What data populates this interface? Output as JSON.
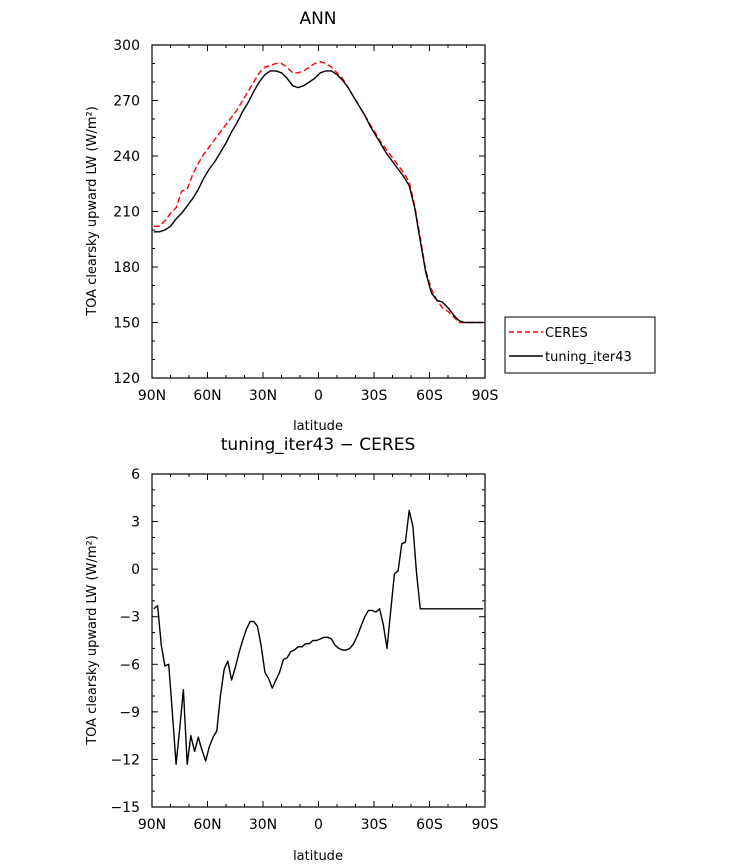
{
  "chart_data": [
    {
      "type": "line",
      "title": "ANN",
      "xlabel": "latitude",
      "ylabel": "TOA clearsky upward LW (W/m²)",
      "xlim": [
        90,
        -90
      ],
      "ylim": [
        120,
        300
      ],
      "xticks": [
        90,
        60,
        30,
        0,
        -30,
        -60,
        -90
      ],
      "xtick_labels": [
        "90N",
        "60N",
        "30N",
        "0",
        "30S",
        "60S",
        "90S"
      ],
      "yticks": [
        120,
        150,
        180,
        210,
        240,
        270,
        300
      ],
      "ytick_labels": [
        "120",
        "150",
        "180",
        "210",
        "240",
        "270",
        "300"
      ],
      "grid": false,
      "legend": "outside-right",
      "series": [
        {
          "name": "CERES",
          "color": "#ff0000",
          "style": "dashed",
          "x": [
            89,
            86,
            83,
            80,
            77,
            74,
            71,
            68,
            65,
            62,
            59,
            56,
            53,
            50,
            47,
            44,
            41,
            38,
            35,
            32,
            29,
            26,
            23,
            20,
            17,
            14,
            11,
            8,
            5,
            2,
            -1,
            -4,
            -7,
            -10,
            -13,
            -16,
            -19,
            -22,
            -25,
            -28,
            -31,
            -34,
            -37,
            -40,
            -43,
            -46,
            -49,
            -52,
            -55,
            -58,
            -61,
            -64,
            -67,
            -70,
            -73,
            -76,
            -79,
            -82,
            -85,
            -88,
            -89
          ],
          "y": [
            202,
            202,
            205,
            209,
            212,
            221,
            222,
            230,
            236,
            241,
            245,
            249,
            253,
            257,
            261,
            265,
            270,
            275,
            280,
            285,
            288,
            289,
            290,
            290,
            288,
            285,
            285,
            286,
            288,
            290,
            291,
            290,
            288,
            285,
            282,
            277,
            272,
            267,
            262,
            257,
            252,
            247,
            243,
            239,
            235,
            231,
            226,
            213,
            196,
            178,
            168,
            162,
            158,
            156,
            153,
            150,
            150,
            150,
            150,
            150,
            150
          ],
          "y_note": "values estimated from axis"
        },
        {
          "name": "tuning_iter43",
          "color": "#000000",
          "style": "solid",
          "x": [
            89,
            86,
            83,
            80,
            77,
            74,
            71,
            68,
            65,
            62,
            59,
            56,
            53,
            50,
            47,
            44,
            41,
            38,
            35,
            32,
            29,
            26,
            23,
            20,
            17,
            14,
            11,
            8,
            5,
            2,
            -1,
            -4,
            -7,
            -10,
            -13,
            -16,
            -19,
            -22,
            -25,
            -28,
            -31,
            -34,
            -37,
            -40,
            -43,
            -46,
            -49,
            -52,
            -55,
            -58,
            -61,
            -64,
            -67,
            -70,
            -73,
            -76,
            -79,
            -82,
            -85,
            -88,
            -89
          ],
          "y": [
            199,
            199,
            200,
            202,
            206,
            209,
            213,
            217,
            222,
            228,
            233,
            237,
            242,
            247,
            253,
            258,
            264,
            269,
            275,
            280,
            284,
            286,
            286,
            285,
            282,
            278,
            277,
            278,
            280,
            282,
            285,
            286,
            286,
            284,
            281,
            277,
            272,
            267,
            262,
            256,
            251,
            246,
            241,
            237,
            233,
            229,
            224,
            212,
            194,
            177,
            166,
            162,
            161,
            158,
            154,
            151,
            150,
            150,
            150,
            150,
            150
          ]
        }
      ]
    },
    {
      "type": "line",
      "title": "tuning_iter43 − CERES",
      "xlabel": "latitude",
      "ylabel": "TOA clearsky upward LW (W/m²)",
      "xlim": [
        90,
        -90
      ],
      "ylim": [
        -15,
        6
      ],
      "xticks": [
        90,
        60,
        30,
        0,
        -30,
        -60,
        -90
      ],
      "xtick_labels": [
        "90N",
        "60N",
        "30N",
        "0",
        "30S",
        "60S",
        "90S"
      ],
      "yticks": [
        -15,
        -12,
        -9,
        -6,
        -3,
        0,
        3,
        6
      ],
      "ytick_labels": [
        "−15",
        "−12",
        "−9",
        "−6",
        "−3",
        "0",
        "3",
        "6"
      ],
      "grid": false,
      "series": [
        {
          "color": "#000000",
          "style": "solid",
          "x": [
            89,
            87,
            85,
            83,
            81,
            79,
            77,
            75,
            73,
            71,
            69,
            67,
            65,
            63,
            61,
            59,
            57,
            55,
            53,
            51,
            49,
            47,
            45,
            43,
            41,
            39,
            37,
            35,
            33,
            31,
            29,
            27,
            25,
            23,
            21,
            19,
            17,
            15,
            13,
            11,
            9,
            7,
            5,
            3,
            1,
            -1,
            -3,
            -5,
            -7,
            -9,
            -11,
            -13,
            -15,
            -17,
            -19,
            -21,
            -23,
            -25,
            -27,
            -29,
            -31,
            -33,
            -35,
            -37,
            -39,
            -41,
            -43,
            -45,
            -47,
            -49,
            -51,
            -53,
            -55,
            -57,
            -59,
            -61,
            -63,
            -65,
            -67,
            -69,
            -71,
            -73,
            -75,
            -77,
            -79,
            -81,
            -83,
            -85,
            -87,
            -89
          ],
          "y": [
            -2.5,
            -2.3,
            -4.8,
            -6.1,
            -6.0,
            -9.0,
            -12.3,
            -10.0,
            -7.6,
            -12.3,
            -10.5,
            -11.5,
            -10.6,
            -11.4,
            -12.1,
            -11.2,
            -10.6,
            -10.2,
            -8.0,
            -6.3,
            -5.8,
            -7.0,
            -6.2,
            -5.3,
            -4.5,
            -3.8,
            -3.3,
            -3.3,
            -3.6,
            -4.8,
            -6.5,
            -6.9,
            -7.5,
            -7.0,
            -6.5,
            -5.7,
            -5.6,
            -5.2,
            -5.1,
            -4.9,
            -4.9,
            -4.7,
            -4.7,
            -4.5,
            -4.5,
            -4.4,
            -4.3,
            -4.3,
            -4.4,
            -4.8,
            -5.0,
            -5.1,
            -5.1,
            -5.0,
            -4.7,
            -4.2,
            -3.6,
            -3.0,
            -2.6,
            -2.6,
            -2.7,
            -2.5,
            -3.5,
            -5.0,
            -2.7,
            -0.3,
            -0.1,
            1.6,
            1.7,
            3.7,
            2.7,
            -0.3,
            -2.5,
            -2.5,
            -2.5,
            -2.5,
            -2.5,
            -2.5,
            -2.5,
            -2.5,
            -2.5,
            -2.5,
            -2.5,
            -2.5,
            -2.5,
            -2.5,
            -2.5,
            -2.5,
            -2.5,
            -2.5
          ],
          "y_note": "values estimated from axis"
        }
      ]
    }
  ]
}
